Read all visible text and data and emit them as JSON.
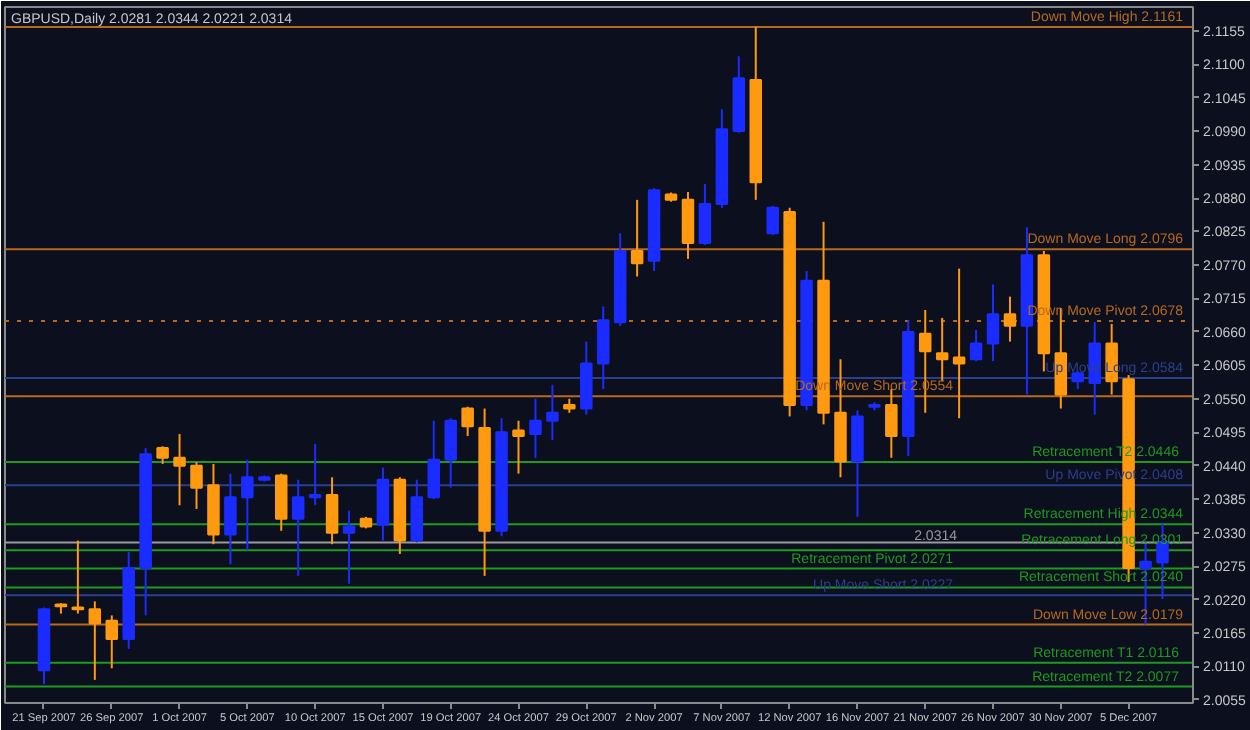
{
  "chart_data": {
    "type": "candlestick",
    "title": "GBPUSD,Daily  2.0281 2.0344 2.0221 2.0314",
    "categories": [
      "21 Sep 2007",
      null,
      null,
      null,
      "26 Sep 2007",
      null,
      null,
      null,
      "1 Oct 2007",
      null,
      null,
      null,
      "5 Oct 2007",
      null,
      null,
      null,
      "10 Oct 2007",
      null,
      null,
      null,
      "15 Oct 2007",
      null,
      null,
      null,
      "19 Oct 2007",
      null,
      null,
      null,
      "24 Oct 2007",
      null,
      null,
      null,
      "29 Oct 2007",
      null,
      null,
      null,
      "2 Nov 2007",
      null,
      null,
      null,
      "7 Nov 2007",
      null,
      null,
      null,
      "12 Nov 2007",
      null,
      null,
      null,
      "16 Nov 2007",
      null,
      null,
      null,
      "21 Nov 2007",
      null,
      null,
      null,
      "26 Nov 2007",
      null,
      null,
      null,
      "30 Nov 2007",
      null,
      null,
      null,
      "5 Dec 2007",
      null,
      null
    ],
    "ylim": [
      2.005,
      2.1194
    ],
    "yticks": [
      {
        "value": 2.0055,
        "label": "2.0055"
      },
      {
        "value": 2.011,
        "label": "2.0110"
      },
      {
        "value": 2.0165,
        "label": "2.0165"
      },
      {
        "value": 2.022,
        "label": "2.0220"
      },
      {
        "value": 2.0275,
        "label": "2.0275"
      },
      {
        "value": 2.033,
        "label": "2.0330"
      },
      {
        "value": 2.0385,
        "label": "2.0385"
      },
      {
        "value": 2.044,
        "label": "2.0440"
      },
      {
        "value": 2.0495,
        "label": "2.0495"
      },
      {
        "value": 2.055,
        "label": "2.0550"
      },
      {
        "value": 2.0605,
        "label": "2.0605"
      },
      {
        "value": 2.066,
        "label": "2.0660"
      },
      {
        "value": 2.0715,
        "label": "2.0715"
      },
      {
        "value": 2.077,
        "label": "2.0770"
      },
      {
        "value": 2.0825,
        "label": "2.0825"
      },
      {
        "value": 2.088,
        "label": "2.0880"
      },
      {
        "value": 2.0935,
        "label": "2.0935"
      },
      {
        "value": 2.099,
        "label": "2.0990"
      },
      {
        "value": 2.1045,
        "label": "2.1045"
      },
      {
        "value": 2.11,
        "label": "2.1100"
      },
      {
        "value": 2.1155,
        "label": "2.1155"
      }
    ],
    "series": [
      {
        "ohlc": [
          [
            2.0104,
            2.0207,
            2.0081,
            2.0204
          ],
          [
            2.0212,
            2.0214,
            2.0197,
            2.0209
          ],
          [
            2.0207,
            2.0317,
            2.0197,
            2.0204
          ],
          [
            2.0204,
            2.0217,
            2.0088,
            2.0181
          ],
          [
            2.0185,
            2.0194,
            2.0107,
            2.0155
          ],
          [
            2.0155,
            2.0298,
            2.0139,
            2.0272
          ],
          [
            2.0272,
            2.0469,
            2.0194,
            2.0459
          ],
          [
            2.0469,
            2.0472,
            2.0443,
            2.0453
          ],
          [
            2.0453,
            2.0492,
            2.0375,
            2.044
          ],
          [
            2.044,
            2.0446,
            2.0369,
            2.0404
          ],
          [
            2.0408,
            2.0443,
            2.0311,
            2.0327
          ],
          [
            2.0327,
            2.0427,
            2.0278,
            2.0388
          ],
          [
            2.0388,
            2.045,
            2.0301,
            2.0421
          ],
          [
            2.0417,
            2.0424,
            2.0414,
            2.0421
          ],
          [
            2.0424,
            2.0427,
            2.0333,
            2.0353
          ],
          [
            2.0353,
            2.0417,
            2.0259,
            2.0388
          ],
          [
            2.0388,
            2.0476,
            2.0375,
            2.0392
          ],
          [
            2.0392,
            2.0421,
            2.0311,
            2.033
          ],
          [
            2.033,
            2.0366,
            2.0246,
            2.034
          ],
          [
            2.0353,
            2.0356,
            2.0337,
            2.034
          ],
          [
            2.0343,
            2.0437,
            2.0317,
            2.0417
          ],
          [
            2.0417,
            2.0421,
            2.0295,
            2.0317
          ],
          [
            2.0317,
            2.0417,
            2.0314,
            2.0388
          ],
          [
            2.0388,
            2.0514,
            2.0385,
            2.045
          ],
          [
            2.045,
            2.0518,
            2.0404,
            2.0514
          ],
          [
            2.0534,
            2.0537,
            2.0489,
            2.0505
          ],
          [
            2.0502,
            2.0534,
            2.0259,
            2.0333
          ],
          [
            2.0333,
            2.0518,
            2.0324,
            2.0495
          ],
          [
            2.0498,
            2.0514,
            2.0427,
            2.0489
          ],
          [
            2.0492,
            2.055,
            2.0453,
            2.0514
          ],
          [
            2.0514,
            2.0573,
            2.0482,
            2.0527
          ],
          [
            2.054,
            2.055,
            2.0527,
            2.0534
          ],
          [
            2.0534,
            2.0644,
            2.0524,
            2.0608
          ],
          [
            2.0608,
            2.0702,
            2.0566,
            2.0679
          ],
          [
            2.0676,
            2.0822,
            2.067,
            2.0793
          ],
          [
            2.0793,
            2.0877,
            2.0751,
            2.0773
          ],
          [
            2.0777,
            2.0896,
            2.076,
            2.0893
          ],
          [
            2.0886,
            2.0889,
            2.0874,
            2.0877
          ],
          [
            2.0877,
            2.089,
            2.078,
            2.0806
          ],
          [
            2.0806,
            2.0903,
            2.0803,
            2.087
          ],
          [
            2.087,
            2.1026,
            2.0864,
            2.0993
          ],
          [
            2.099,
            2.1113,
            2.0987,
            2.1077
          ],
          [
            2.1074,
            2.1161,
            2.0877,
            2.0906
          ],
          [
            2.0822,
            2.0867,
            2.0819,
            2.0864
          ],
          [
            2.0857,
            2.0864,
            2.0521,
            2.054
          ],
          [
            2.054,
            2.076,
            2.0531,
            2.0744
          ],
          [
            2.0744,
            2.0841,
            2.0508,
            2.0527
          ],
          [
            2.0527,
            2.0615,
            2.0421,
            2.0447
          ],
          [
            2.0447,
            2.0531,
            2.0356,
            2.0521
          ],
          [
            2.0537,
            2.0544,
            2.0531,
            2.054
          ],
          [
            2.054,
            2.0566,
            2.0453,
            2.0489
          ],
          [
            2.0489,
            2.0679,
            2.0456,
            2.066
          ],
          [
            2.0657,
            2.0696,
            2.0527,
            2.0628
          ],
          [
            2.0625,
            2.0683,
            2.0579,
            2.0615
          ],
          [
            2.0618,
            2.0764,
            2.0518,
            2.0608
          ],
          [
            2.0615,
            2.0663,
            2.0612,
            2.0641
          ],
          [
            2.0641,
            2.0738,
            2.0612,
            2.0689
          ],
          [
            2.0689,
            2.0718,
            2.0644,
            2.067
          ],
          [
            2.067,
            2.0832,
            2.0557,
            2.0786
          ],
          [
            2.0786,
            2.0793,
            2.0595,
            2.0625
          ],
          [
            2.0625,
            2.0699,
            2.0534,
            2.0557
          ],
          [
            2.0579,
            2.0595,
            2.0566,
            2.0592
          ],
          [
            2.0576,
            2.0676,
            2.0524,
            2.0641
          ],
          [
            2.0641,
            2.0673,
            2.0557,
            2.0579
          ],
          [
            2.0582,
            2.0589,
            2.0249,
            2.0272
          ],
          [
            2.0272,
            2.0314,
            2.0179,
            2.0282
          ],
          [
            2.0281,
            2.0344,
            2.0221,
            2.0314
          ]
        ],
        "colors": [
          "#1a2cff",
          "#ff9a10",
          "#ff9a10",
          "#ff9a10",
          "#ff9a10",
          "#1a2cff",
          "#1a2cff",
          "#ff9a10",
          "#ff9a10",
          "#ff9a10",
          "#ff9a10",
          "#1a2cff",
          "#1a2cff",
          "#1a2cff",
          "#ff9a10",
          "#1a2cff",
          "#1a2cff",
          "#ff9a10",
          "#1a2cff",
          "#ff9a10",
          "#1a2cff",
          "#ff9a10",
          "#1a2cff",
          "#1a2cff",
          "#1a2cff",
          "#ff9a10",
          "#ff9a10",
          "#1a2cff",
          "#ff9a10",
          "#1a2cff",
          "#1a2cff",
          "#ff9a10",
          "#1a2cff",
          "#1a2cff",
          "#1a2cff",
          "#ff9a10",
          "#1a2cff",
          "#ff9a10",
          "#ff9a10",
          "#1a2cff",
          "#1a2cff",
          "#1a2cff",
          "#ff9a10",
          "#1a2cff",
          "#ff9a10",
          "#1a2cff",
          "#ff9a10",
          "#ff9a10",
          "#1a2cff",
          "#1a2cff",
          "#ff9a10",
          "#1a2cff",
          "#ff9a10",
          "#ff9a10",
          "#ff9a10",
          "#1a2cff",
          "#1a2cff",
          "#ff9a10",
          "#1a2cff",
          "#ff9a10",
          "#ff9a10",
          "#1a2cff",
          "#1a2cff",
          "#ff9a10",
          "#ff9a10",
          "#1a2cff",
          "#1a2cff"
        ]
      }
    ],
    "ref_lines": [
      {
        "axis": "y",
        "value": 2.1161,
        "label": "Down Move High  2.1161",
        "color": "#b8691c"
      },
      {
        "axis": "y",
        "value": 2.0796,
        "label": "Down Move Long  2.0796",
        "color": "#b8691c"
      },
      {
        "axis": "y",
        "value": 2.0678,
        "label": "Down Move Pivot  2.0678",
        "color": "#b8691c",
        "line_style": "dotted"
      },
      {
        "axis": "y",
        "value": 2.0584,
        "label": "Up Move Long  2.0584",
        "color": "#2c3f8c"
      },
      {
        "axis": "y",
        "value": 2.0554,
        "label": "Down Move Short  2.0554",
        "color": "#b8691c"
      },
      {
        "axis": "y",
        "value": 2.0446,
        "label": "Retracement  T2  2.0446",
        "color": "#1e9a1e"
      },
      {
        "axis": "y",
        "value": 2.0408,
        "label": "Up Move Pivot  2.0408",
        "color": "#2c3f8c"
      },
      {
        "axis": "y",
        "value": 2.0344,
        "label": "Retracement High  2.0344",
        "color": "#1e9a1e"
      },
      {
        "axis": "y",
        "value": 2.0314,
        "label": "2.0314",
        "color": "#9a9a9a"
      },
      {
        "axis": "y",
        "value": 2.0301,
        "label": "Retracement Long  2.0301",
        "color": "#1e9a1e"
      },
      {
        "axis": "y",
        "value": 2.0271,
        "label": "Retracement Pivot  2.0271",
        "color": "#1e9a1e"
      },
      {
        "axis": "y",
        "value": 2.024,
        "label": "Retracement Short  2.0240",
        "color": "#1e9a1e"
      },
      {
        "axis": "y",
        "value": 2.0227,
        "label": "Up Move Short  2.0227",
        "color": "#2c3f8c"
      },
      {
        "axis": "y",
        "value": 2.0179,
        "label": "Down Move Low  2.0179",
        "color": "#b8691c"
      },
      {
        "axis": "y",
        "value": 2.0116,
        "label": "Retracement  T1  2.0116",
        "color": "#1e9a1e"
      },
      {
        "axis": "y",
        "value": 2.0077,
        "label": "Retracement  T2  2.0077",
        "color": "#1e9a1e"
      }
    ]
  }
}
